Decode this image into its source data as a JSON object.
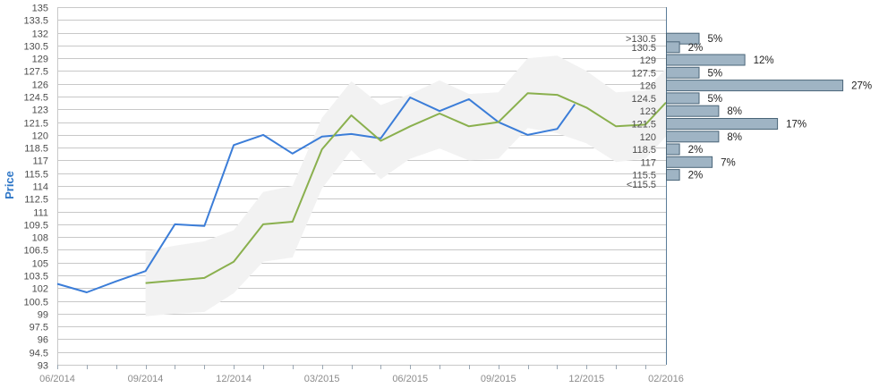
{
  "chart_data": {
    "type": "line",
    "ylabel": "Price",
    "xlabel": "",
    "ylim": [
      93,
      135
    ],
    "y_ticks": [
      "93",
      "94.5",
      "96",
      "97.5",
      "99",
      "100.5",
      "102",
      "103.5",
      "105",
      "106.5",
      "108",
      "109.5",
      "111",
      "112.5",
      "114",
      "115.5",
      "117",
      "118.5",
      "120",
      "121.5",
      "123",
      "124.5",
      "126",
      "127.5",
      "129",
      "130.5",
      "132",
      "133.5",
      "135"
    ],
    "x_ticks": [
      {
        "label": "06/2014",
        "month": 0
      },
      {
        "label": "09/2014",
        "month": 3
      },
      {
        "label": "12/2014",
        "month": 6
      },
      {
        "label": "03/2015",
        "month": 9
      },
      {
        "label": "06/2015",
        "month": 12
      },
      {
        "label": "09/2015",
        "month": 15
      },
      {
        "label": "12/2015",
        "month": 18
      },
      {
        "label": "02/2016",
        "month": 20.7
      }
    ],
    "series": [
      {
        "name": "",
        "color": "#3b7dd8",
        "points": [
          [
            0,
            102.5
          ],
          [
            1,
            101.5
          ],
          [
            2,
            102.8
          ],
          [
            3,
            104
          ],
          [
            4,
            109.5
          ],
          [
            5,
            109.3
          ],
          [
            6,
            118.8
          ],
          [
            7,
            120
          ],
          [
            8,
            117.8
          ],
          [
            9,
            119.8
          ],
          [
            10,
            120.1
          ],
          [
            11,
            119.6
          ],
          [
            12,
            124.4
          ],
          [
            13,
            122.8
          ],
          [
            14,
            124.2
          ],
          [
            15,
            121.5
          ],
          [
            16,
            120
          ],
          [
            17,
            120.7
          ],
          [
            17.6,
            123.6
          ]
        ]
      },
      {
        "name": "",
        "color": "#8ab04e",
        "points": [
          [
            3,
            102.6
          ],
          [
            4,
            102.9
          ],
          [
            5,
            103.2
          ],
          [
            6,
            105.1
          ],
          [
            7,
            109.5
          ],
          [
            8,
            109.8
          ],
          [
            9,
            118.3
          ],
          [
            10,
            122.3
          ],
          [
            11,
            119.3
          ],
          [
            12,
            121
          ],
          [
            13,
            122.5
          ],
          [
            14,
            121
          ],
          [
            15,
            121.5
          ],
          [
            16,
            124.9
          ],
          [
            17,
            124.7
          ],
          [
            18,
            123.2
          ],
          [
            19,
            121
          ],
          [
            20,
            121.2
          ],
          [
            20.7,
            123.8
          ]
        ]
      }
    ],
    "band": {
      "color": "#f2f2f2",
      "upper": [
        [
          3,
          106.3
        ],
        [
          4,
          107
        ],
        [
          5,
          107.5
        ],
        [
          6,
          108.8
        ],
        [
          7,
          113.3
        ],
        [
          8,
          114
        ],
        [
          9,
          122
        ],
        [
          10,
          126.3
        ],
        [
          11,
          123.5
        ],
        [
          12,
          124.8
        ],
        [
          13,
          126.4
        ],
        [
          14,
          124.8
        ],
        [
          15,
          125
        ],
        [
          16,
          129
        ],
        [
          17,
          129.3
        ],
        [
          18,
          127.5
        ],
        [
          19,
          125
        ],
        [
          20,
          125.2
        ],
        [
          20.7,
          127.8
        ]
      ],
      "lower": [
        [
          20.7,
          119.8
        ],
        [
          20,
          117.2
        ],
        [
          19,
          116.8
        ],
        [
          18,
          119
        ],
        [
          17,
          120.2
        ],
        [
          16,
          120.8
        ],
        [
          15,
          117.2
        ],
        [
          14,
          117
        ],
        [
          13,
          118.4
        ],
        [
          12,
          117.2
        ],
        [
          11,
          114.8
        ],
        [
          10,
          118.2
        ],
        [
          9,
          113.7
        ],
        [
          8,
          105.6
        ],
        [
          7,
          105.1
        ],
        [
          6,
          101.4
        ],
        [
          5,
          99.2
        ],
        [
          4,
          99
        ],
        [
          3,
          98.7
        ]
      ]
    },
    "histogram": {
      "color": "#9fb4c4",
      "border": "#4a6578",
      "bins": [
        {
          "label": ">130.5",
          "y": 131.3,
          "pct": 5,
          "text": "5%"
        },
        {
          "label": "130.5",
          "y": 130.3,
          "pct": 2,
          "text": "2%"
        },
        {
          "label": "129",
          "y": 128.8,
          "pct": 12,
          "text": "12%"
        },
        {
          "label": "127.5",
          "y": 127.3,
          "pct": 5,
          "text": "5%"
        },
        {
          "label": "126",
          "y": 125.8,
          "pct": 27,
          "text": "27%"
        },
        {
          "label": "124.5",
          "y": 124.3,
          "pct": 5,
          "text": "5%"
        },
        {
          "label": "123",
          "y": 122.8,
          "pct": 8,
          "text": "8%"
        },
        {
          "label": "121.5",
          "y": 121.3,
          "pct": 17,
          "text": "17%"
        },
        {
          "label": "120",
          "y": 119.8,
          "pct": 8,
          "text": "8%"
        },
        {
          "label": "118.5",
          "y": 118.3,
          "pct": 2,
          "text": "2%"
        },
        {
          "label": "117",
          "y": 116.8,
          "pct": 7,
          "text": "7%"
        },
        {
          "label": "115.5",
          "y": 115.3,
          "pct": 2,
          "text": "2%"
        },
        {
          "label": "<115.5",
          "y": 114.2,
          "pct": null,
          "text": ""
        }
      ]
    },
    "grid": true,
    "colors": {
      "grid": "#c8c8c8",
      "axis": "#9aa7b3",
      "divider": "#5b7d99"
    }
  }
}
